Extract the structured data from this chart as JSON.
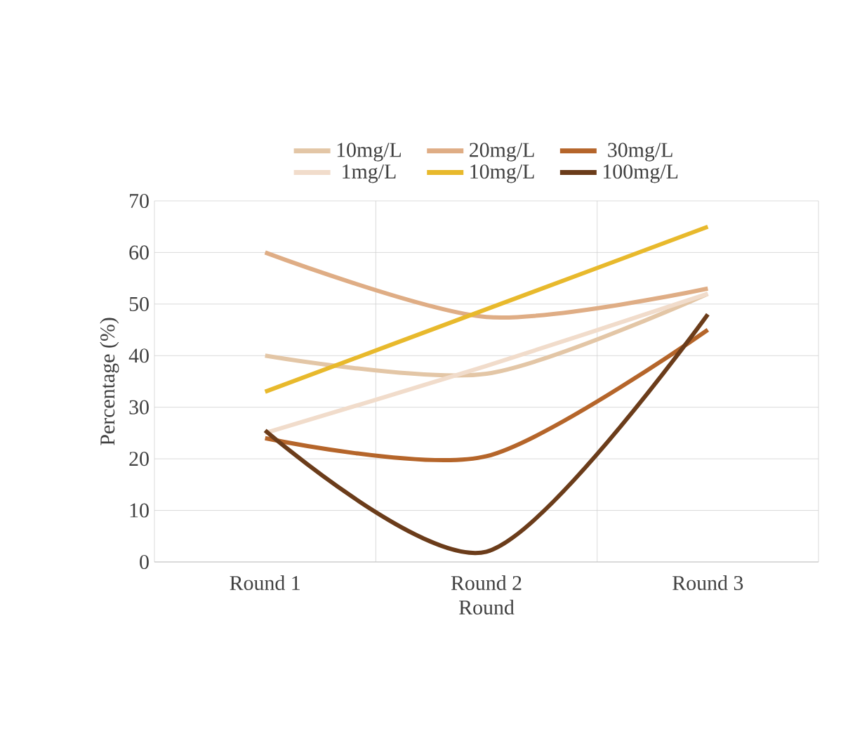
{
  "chart_data": {
    "type": "line",
    "xlabel": "Round",
    "ylabel": "Percentage (%)",
    "categories": [
      "Round 1",
      "Round 2",
      "Round 3"
    ],
    "series": [
      {
        "name": "10mg/L",
        "color": "#e3c6a6",
        "values": [
          40,
          36.5,
          52
        ]
      },
      {
        "name": "20mg/L",
        "color": "#dfad85",
        "values": [
          60,
          47.5,
          53
        ]
      },
      {
        "name": "30mg/L",
        "color": "#b5652a",
        "values": [
          24,
          20.5,
          45
        ]
      },
      {
        "name": "1mg/L",
        "color": "#f1dccb",
        "values": [
          25,
          38,
          52
        ]
      },
      {
        "name": "10mg/L",
        "color": "#e8b92c",
        "values": [
          33,
          49,
          65
        ]
      },
      {
        "name": "100mg/L",
        "color": "#6b3c1a",
        "values": [
          25.5,
          2,
          48
        ]
      }
    ],
    "ylim": [
      0,
      70
    ],
    "yticks": [
      0,
      10,
      20,
      30,
      40,
      50,
      60,
      70
    ],
    "grid": true,
    "legend": "top",
    "marker": "none",
    "line_style": "solid"
  }
}
